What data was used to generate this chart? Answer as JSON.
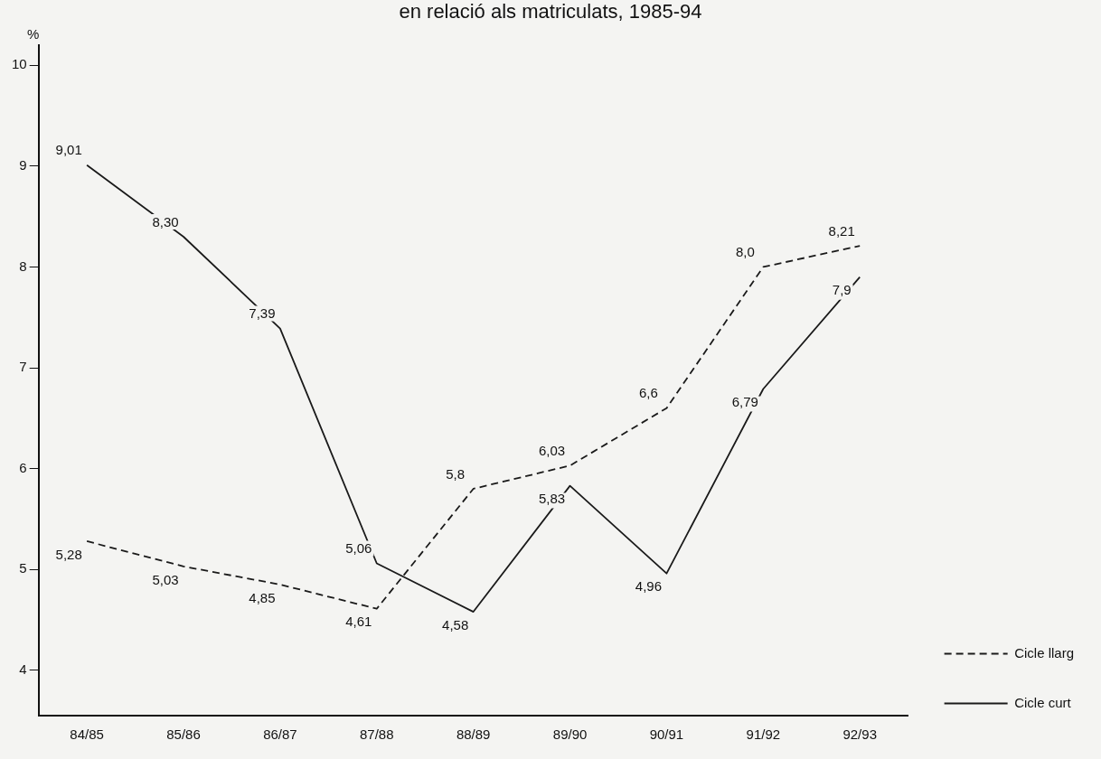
{
  "chart_data": {
    "type": "line",
    "title": "en relació als matriculats, 1985-94",
    "ylabel": "%",
    "categories": [
      "84/85",
      "85/86",
      "86/87",
      "87/88",
      "88/89",
      "89/90",
      "90/91",
      "91/92",
      "92/93"
    ],
    "series": [
      {
        "name": "Cicle llarg",
        "color": "#1a1a1a",
        "line_style": "dashed",
        "values": [
          5.28,
          5.03,
          4.85,
          4.61,
          5.8,
          6.03,
          6.6,
          8.0,
          8.21
        ],
        "value_labels": [
          "5,28",
          "5,03",
          "4,85",
          "4,61",
          "5,8",
          "6,03",
          "6,6",
          "8,0",
          "8,21"
        ]
      },
      {
        "name": "Cicle curt",
        "color": "#1a1a1a",
        "line_style": "solid",
        "values": [
          9.01,
          8.3,
          7.39,
          5.06,
          4.58,
          5.83,
          4.96,
          6.79,
          7.9
        ],
        "value_labels": [
          "9,01",
          "8,30",
          "7,39",
          "5,06",
          "4,58",
          "5,83",
          "4,96",
          "6,79",
          "7,9"
        ]
      }
    ],
    "ylim": [
      3.55,
      10.2
    ],
    "yticks": [
      4,
      5,
      6,
      7,
      8,
      9,
      10
    ],
    "grid": false,
    "legend": "bottom right",
    "marker": "none"
  }
}
